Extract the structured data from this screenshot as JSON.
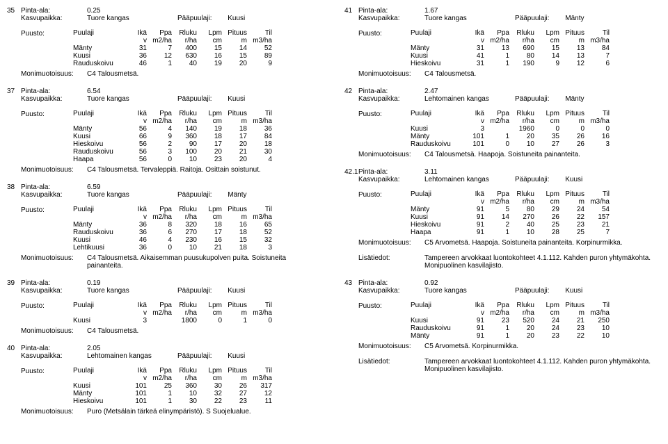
{
  "labels": {
    "pinta": "Pinta-ala:",
    "kasvu": "Kasvupaikka:",
    "paap": "Pääpuulaji:",
    "puusto": "Puusto:",
    "moni": "Monimuotoisuus:",
    "lisa": "Lisätiedot:"
  },
  "cols": {
    "puulaji": "Puulaji",
    "ika": "Ikä",
    "ppa": "Ppa",
    "rluku": "Rluku",
    "lpm": "Lpm",
    "pituus": "Pituus",
    "til": "Til",
    "v": "v",
    "m2ha": "m2/ha",
    "rha": "r/ha",
    "cm": "cm",
    "m": "m",
    "m3ha": "m3/ha"
  },
  "left": [
    {
      "id": "35",
      "pinta": "0.25",
      "kasvu": "Tuore kangas",
      "paap": "Kuusi",
      "rows": [
        [
          "Mänty",
          "31",
          "7",
          "400",
          "15",
          "14",
          "52"
        ],
        [
          "Kuusi",
          "36",
          "12",
          "630",
          "16",
          "15",
          "89"
        ],
        [
          "Rauduskoivu",
          "46",
          "1",
          "40",
          "19",
          "20",
          "9"
        ]
      ],
      "moni": "C4 Talousmetsä."
    },
    {
      "id": "37",
      "pinta": "6.54",
      "kasvu": "Tuore kangas",
      "paap": "Kuusi",
      "rows": [
        [
          "Mänty",
          "56",
          "4",
          "140",
          "19",
          "18",
          "36"
        ],
        [
          "Kuusi",
          "66",
          "9",
          "360",
          "18",
          "17",
          "84"
        ],
        [
          "Hieskoivu",
          "56",
          "2",
          "90",
          "17",
          "20",
          "18"
        ],
        [
          "Rauduskoivu",
          "56",
          "3",
          "100",
          "20",
          "21",
          "30"
        ],
        [
          "Haapa",
          "56",
          "0",
          "10",
          "23",
          "20",
          "4"
        ]
      ],
      "moni": "C4 Talousmetsä. Tervaleppiä. Raitoja. Osittain soistunut."
    },
    {
      "id": "38",
      "pinta": "6.59",
      "kasvu": "Tuore kangas",
      "paap": "Mänty",
      "rows": [
        [
          "Mänty",
          "36",
          "8",
          "320",
          "18",
          "16",
          "65"
        ],
        [
          "Rauduskoivu",
          "36",
          "6",
          "270",
          "17",
          "18",
          "52"
        ],
        [
          "Kuusi",
          "46",
          "4",
          "230",
          "16",
          "15",
          "32"
        ],
        [
          "Lehtikuusi",
          "36",
          "0",
          "10",
          "21",
          "18",
          "3"
        ]
      ],
      "moni": "C4 Talousmetsä. Aikaisemman puusukupolven puita. Soistuneita painanteita."
    },
    {
      "id": "39",
      "pinta": "0.19",
      "kasvu": "Tuore kangas",
      "paap": "Kuusi",
      "rows": [
        [
          "Kuusi",
          "3",
          "",
          "1800",
          "0",
          "1",
          "0"
        ]
      ],
      "moni": "C4 Talousmetsä."
    },
    {
      "id": "40",
      "pinta": "2.05",
      "kasvu": "Lehtomainen kangas",
      "paap": "Kuusi",
      "rows": [
        [
          "Kuusi",
          "101",
          "25",
          "360",
          "30",
          "26",
          "317"
        ],
        [
          "Mänty",
          "101",
          "1",
          "10",
          "32",
          "27",
          "12"
        ],
        [
          "Hieskoivu",
          "101",
          "1",
          "30",
          "22",
          "23",
          "11"
        ]
      ],
      "moni": "Puro (Metsälain tärkeä elinympäristö). S Suojelualue."
    }
  ],
  "right": [
    {
      "id": "41",
      "pinta": "1.67",
      "kasvu": "Tuore kangas",
      "paap": "Mänty",
      "rows": [
        [
          "Mänty",
          "31",
          "13",
          "690",
          "15",
          "13",
          "84"
        ],
        [
          "Kuusi",
          "41",
          "1",
          "80",
          "14",
          "13",
          "7"
        ],
        [
          "Hieskoivu",
          "31",
          "1",
          "190",
          "9",
          "12",
          "6"
        ]
      ],
      "moni": "C4 Talousmetsä."
    },
    {
      "id": "42",
      "pinta": "2.47",
      "kasvu": "Lehtomainen kangas",
      "paap": "Mänty",
      "rows": [
        [
          "Kuusi",
          "3",
          "",
          "1960",
          "0",
          "0",
          "0"
        ],
        [
          "Mänty",
          "101",
          "1",
          "20",
          "35",
          "26",
          "16"
        ],
        [
          "Rauduskoivu",
          "101",
          "0",
          "10",
          "27",
          "26",
          "3"
        ]
      ],
      "moni": "C4 Talousmetsä. Haapoja. Soistuneita painanteita."
    },
    {
      "id": "42.1",
      "pinta": "3.11",
      "kasvu": "Lehtomainen kangas",
      "paap": "Kuusi",
      "rows": [
        [
          "Mänty",
          "91",
          "5",
          "80",
          "29",
          "24",
          "54"
        ],
        [
          "Kuusi",
          "91",
          "14",
          "270",
          "26",
          "22",
          "157"
        ],
        [
          "Hieskoivu",
          "91",
          "2",
          "40",
          "25",
          "23",
          "21"
        ],
        [
          "Haapa",
          "91",
          "1",
          "10",
          "28",
          "25",
          "7"
        ]
      ],
      "moni": "C5 Arvometsä. Haapoja. Soistuneita painanteita. Korpinurmikka.",
      "lisa": "Tampereen arvokkaat luontokohteet 4.1.112. Kahden puron yhtymäkohta. Monipuolinen kasvilajisto."
    },
    {
      "id": "43",
      "pinta": "0.92",
      "kasvu": "Tuore kangas",
      "paap": "Kuusi",
      "rows": [
        [
          "Kuusi",
          "91",
          "23",
          "520",
          "24",
          "21",
          "250"
        ],
        [
          "Rauduskoivu",
          "91",
          "1",
          "20",
          "24",
          "23",
          "10"
        ],
        [
          "Mänty",
          "91",
          "1",
          "20",
          "23",
          "22",
          "10"
        ]
      ],
      "moni": "C5 Arvometsä. Korpinurmikka.",
      "lisa": "Tampereen arvokkaat luontokohteet 4.1.112. Kahden puron yhtymäkohta. Monipuolinen kasvilajisto."
    }
  ]
}
